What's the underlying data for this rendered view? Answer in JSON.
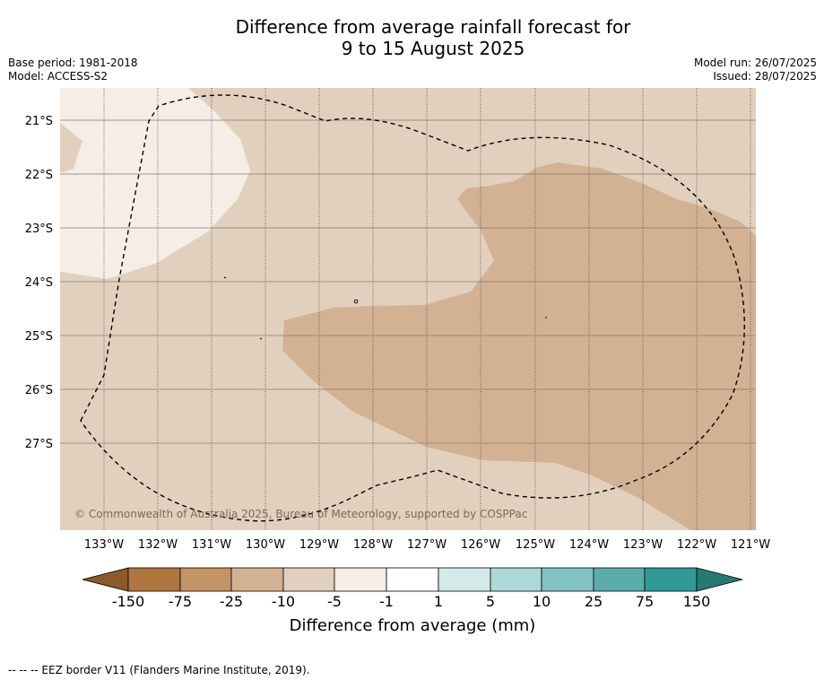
{
  "title": {
    "line1": "Difference from average rainfall forecast for",
    "line2": "9 to 15 August 2025"
  },
  "meta_left": {
    "base_period": "Base period: 1981-2018",
    "model": "Model: ACCESS-S2"
  },
  "meta_right": {
    "model_run": "Model run: 26/07/2025",
    "issued": "Issued: 28/07/2025"
  },
  "map": {
    "latitude_labels": [
      "21°S",
      "22°S",
      "23°S",
      "24°S",
      "25°S",
      "26°S",
      "27°S"
    ],
    "longitude_labels": [
      "133°W",
      "132°W",
      "131°W",
      "130°W",
      "129°W",
      "128°W",
      "127°W",
      "126°W",
      "125°W",
      "124°W",
      "123°W",
      "122°W",
      "121°W"
    ],
    "copyright": "© Commonwealth of Australia 2025, Bureau of Meteorology, supported by COSPPac",
    "fill_colors": {
      "background_minus10_to_minus5": "#e2d0be",
      "minus25_to_minus10": "#d2b293",
      "minus5_to_minus1": "#f5ede6"
    }
  },
  "colorbar": {
    "title": "Difference from average (mm)",
    "tick_labels": [
      "-150",
      "-75",
      "-25",
      "-10",
      "-5",
      "-1",
      "1",
      "5",
      "10",
      "25",
      "75",
      "150"
    ],
    "colors": [
      "#8c5a2a",
      "#af7640",
      "#c29468",
      "#d2b293",
      "#e2d0be",
      "#f5ede6",
      "#ffffff",
      "#d4eae8",
      "#acd8d7",
      "#82c3c1",
      "#5bacab",
      "#319996",
      "#267a74"
    ]
  },
  "footer": {
    "legend_line": "--  --  -- EEZ border V11 (Flanders Marine Institute, 2019)."
  }
}
